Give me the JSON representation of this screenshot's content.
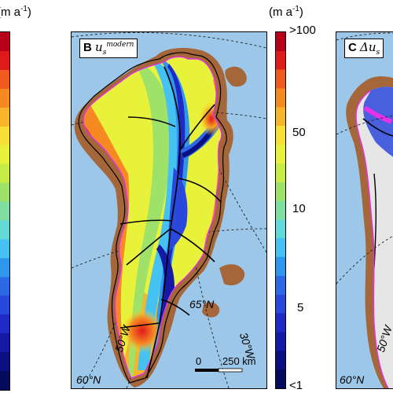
{
  "colorbar": {
    "unit": "(m a",
    "unit_sup": "-1",
    "unit_close": ")",
    "ticks": {
      "top": ">100",
      "t50": "50",
      "t10": "10",
      "t5": "5",
      "bottom": "<1"
    },
    "colors": [
      "#b8001a",
      "#e01a1a",
      "#f05a1e",
      "#f58a22",
      "#f7b52b",
      "#f7df35",
      "#e9f23a",
      "#c7ec47",
      "#9fe26a",
      "#7fdfa0",
      "#62d9d6",
      "#46c2f2",
      "#2f96ee",
      "#2d69e6",
      "#2b48dc",
      "#1f29c6",
      "#141aa5",
      "#0a0f82",
      "#050a5e"
    ]
  },
  "panel_b": {
    "letter": "B",
    "sym": "u",
    "sub": "s",
    "sup": "modern"
  },
  "panel_c": {
    "letter": "C",
    "sym": "Δu",
    "sub": "s"
  },
  "labels": {
    "lat65": "65°N",
    "lat60": "60°N",
    "lon50": "50°W",
    "lon30": "30°W",
    "lat60_c": "60°N",
    "lon50_c": "50°W"
  },
  "scalebar": {
    "zero": "0",
    "value": "250 km"
  },
  "map_colors": {
    "ocean": "#9cc7e8",
    "land": "#a5663a",
    "ice_bg": "#ffffff",
    "margin": "#e632e6"
  }
}
